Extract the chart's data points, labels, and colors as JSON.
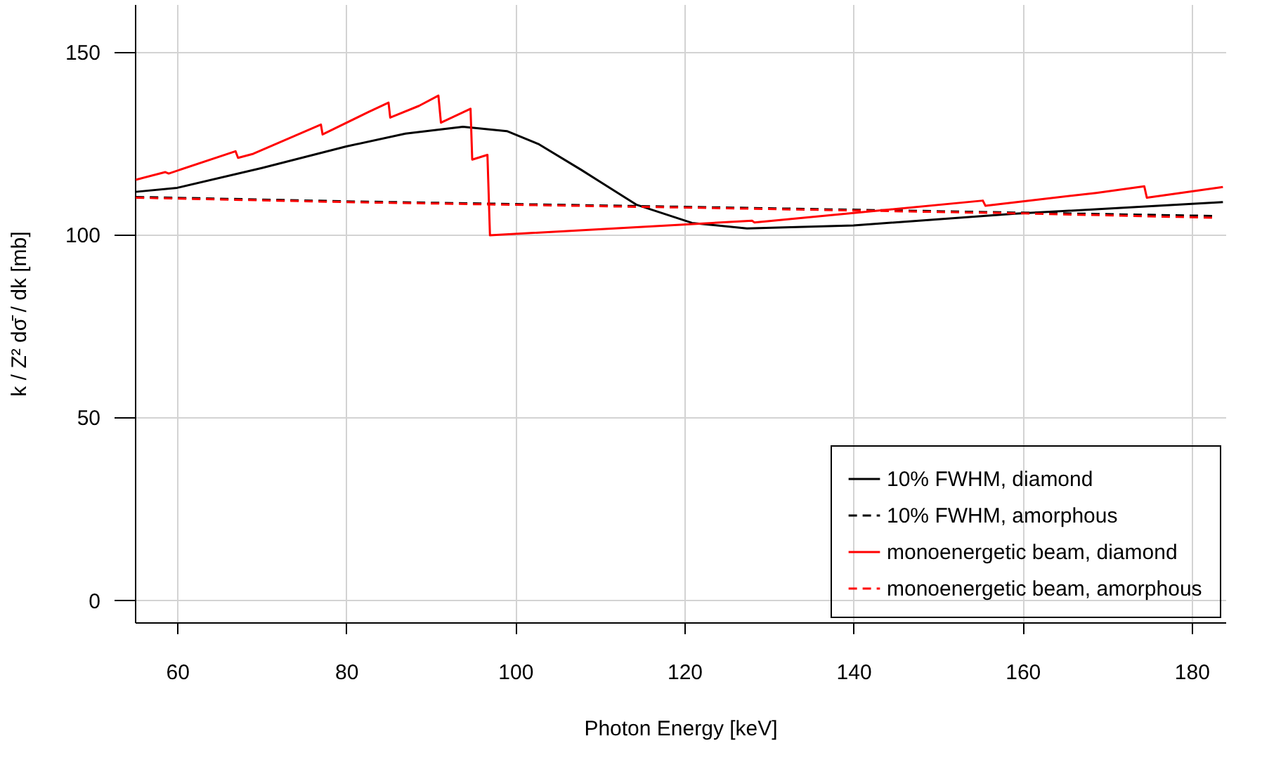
{
  "chart_data": {
    "type": "line",
    "xlabel": "Photon Energy [keV]",
    "ylabel": "k / Z² dσ̄ / dk [mb]",
    "xlim": [
      55,
      184
    ],
    "xticks": [
      60,
      80,
      100,
      120,
      140,
      160,
      180
    ],
    "ylim": [
      -6,
      163
    ],
    "yticks": [
      0,
      50,
      100,
      150
    ],
    "grid": true,
    "legend": "bottom right",
    "series": [
      {
        "name": "10% FWHM, diamond",
        "color": "#000000",
        "line_style": "solid",
        "x": [
          55.1,
          60,
          70,
          80,
          87,
          93.8,
          99,
          102.8,
          107.8,
          114.3,
          120.9,
          127.4,
          140,
          159.1,
          183.7
        ],
        "values": [
          111.7,
          112.8,
          118.2,
          124.1,
          127.6,
          129.5,
          128.3,
          124.7,
          117.7,
          108.2,
          103.2,
          101.7,
          102.5,
          105.7,
          108.9
        ]
      },
      {
        "name": "10% FWHM, amorphous",
        "color": "#000000",
        "line_style": "dashed",
        "x": [
          55.1,
          79.9,
          120,
          160,
          182.6
        ],
        "values": [
          110.3,
          109.1,
          107.6,
          106.0,
          105.1
        ]
      },
      {
        "name": "monoenergetic beam, diamond",
        "color": "#ff0000",
        "line_style": "solid",
        "x": [
          55.1,
          58.6,
          59,
          66.9,
          67.2,
          69.0,
          77.0,
          77.2,
          82.6,
          85.0,
          85.2,
          88.6,
          90.9,
          91.2,
          94.7,
          94.9,
          96.7,
          97.0,
          128.0,
          128.3,
          155.3,
          155.6,
          168.7,
          174.4,
          174.7,
          183.7
        ],
        "values": [
          115.0,
          117.1,
          116.7,
          122.8,
          121.0,
          122.1,
          130.1,
          127.4,
          133.5,
          136.1,
          132.0,
          135.2,
          138.0,
          130.6,
          134.4,
          120.5,
          121.8,
          99.8,
          103.8,
          103.3,
          109.3,
          107.9,
          111.4,
          113.2,
          110.1,
          113.0
        ]
      },
      {
        "name": "monoenergetic beam, amorphous",
        "color": "#ff0000",
        "line_style": "dashed",
        "x": [
          55.1,
          79.9,
          120,
          160,
          182.6
        ],
        "values": [
          110.1,
          108.9,
          107.4,
          105.8,
          104.6
        ]
      }
    ]
  }
}
